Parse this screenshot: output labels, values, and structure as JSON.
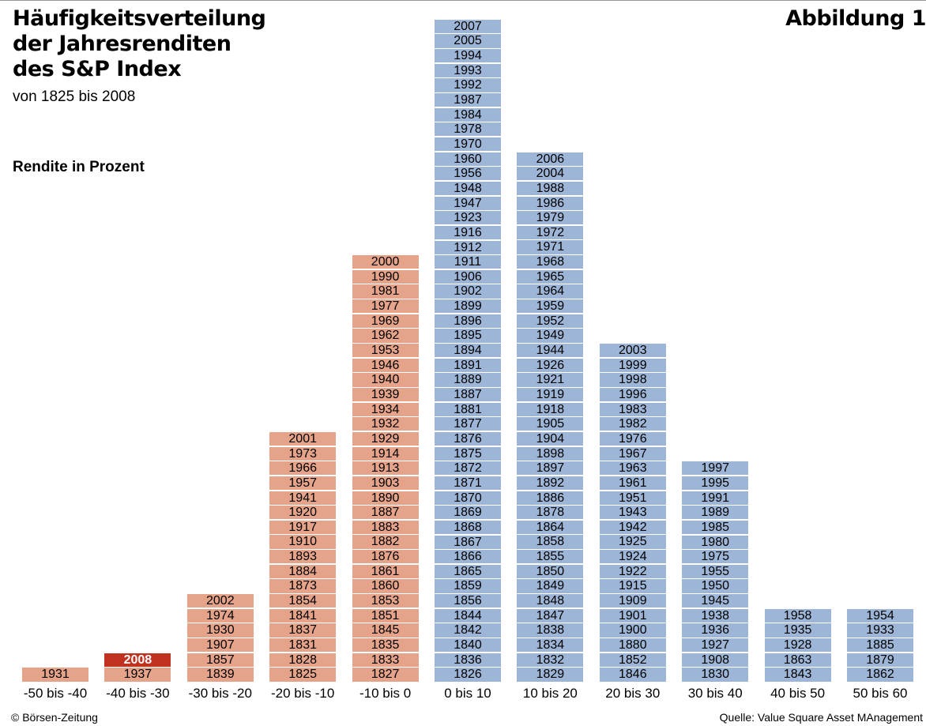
{
  "header": {
    "title": "Häufigkeitsverteilung\nder Jahresrenditen\ndes S&P Index",
    "subtitle": "von 1825 bis 2008",
    "figure_label": "Abbildung 1"
  },
  "footer": {
    "credit": "© Börsen-Zeitung",
    "source": "Quelle: Value Square Asset MAnagement"
  },
  "colors": {
    "negative": "#e5a48a",
    "positive": "#9db5d6",
    "highlight": "#c0311f",
    "highlight_text": "#ffffff"
  },
  "chart_data": {
    "type": "bar",
    "title": "Häufigkeitsverteilung der Jahresrenditen des S&P Index",
    "subtitle": "von 1825 bis 2008",
    "xlabel": "Rendite in Prozent",
    "highlight_year": "2008",
    "categories": [
      "-50 bis -40",
      "-40 bis -30",
      "-30 bis -20",
      "-20 bis -10",
      "-10 bis 0",
      "0 bis 10",
      "10 bis 20",
      "20 bis 30",
      "30 bis 40",
      "40 bis 50",
      "50 bis 60"
    ],
    "values": [
      1,
      2,
      6,
      17,
      29,
      45,
      36,
      23,
      15,
      5,
      5
    ],
    "years": [
      [
        "1931"
      ],
      [
        "2008",
        "1937"
      ],
      [
        "2002",
        "1974",
        "1930",
        "1907",
        "1857",
        "1839"
      ],
      [
        "2001",
        "1973",
        "1966",
        "1957",
        "1941",
        "1920",
        "1917",
        "1910",
        "1893",
        "1884",
        "1873",
        "1854",
        "1841",
        "1837",
        "1831",
        "1828",
        "1825"
      ],
      [
        "2000",
        "1990",
        "1981",
        "1977",
        "1969",
        "1962",
        "1953",
        "1946",
        "1940",
        "1939",
        "1934",
        "1932",
        "1929",
        "1914",
        "1913",
        "1903",
        "1890",
        "1887",
        "1883",
        "1882",
        "1876",
        "1861",
        "1860",
        "1853",
        "1851",
        "1845",
        "1835",
        "1833",
        "1827"
      ],
      [
        "2007",
        "2005",
        "1994",
        "1993",
        "1992",
        "1987",
        "1984",
        "1978",
        "1970",
        "1960",
        "1956",
        "1948",
        "1947",
        "1923",
        "1916",
        "1912",
        "1911",
        "1906",
        "1902",
        "1899",
        "1896",
        "1895",
        "1894",
        "1891",
        "1889",
        "1887",
        "1881",
        "1877",
        "1876",
        "1875",
        "1872",
        "1871",
        "1870",
        "1869",
        "1868",
        "1867",
        "1866",
        "1865",
        "1859",
        "1856",
        "1844",
        "1842",
        "1840",
        "1836",
        "1826"
      ],
      [
        "2006",
        "2004",
        "1988",
        "1986",
        "1979",
        "1972",
        "1971",
        "1968",
        "1965",
        "1964",
        "1959",
        "1952",
        "1949",
        "1944",
        "1926",
        "1921",
        "1919",
        "1918",
        "1905",
        "1904",
        "1898",
        "1897",
        "1892",
        "1886",
        "1878",
        "1864",
        "1858",
        "1855",
        "1850",
        "1849",
        "1848",
        "1847",
        "1838",
        "1834",
        "1832",
        "1829"
      ],
      [
        "2003",
        "1999",
        "1998",
        "1996",
        "1983",
        "1982",
        "1976",
        "1967",
        "1963",
        "1961",
        "1951",
        "1943",
        "1942",
        "1925",
        "1924",
        "1922",
        "1915",
        "1909",
        "1901",
        "1900",
        "1880",
        "1852",
        "1846"
      ],
      [
        "1997",
        "1995",
        "1991",
        "1989",
        "1985",
        "1980",
        "1975",
        "1955",
        "1950",
        "1945",
        "1938",
        "1936",
        "1927",
        "1908",
        "1830"
      ],
      [
        "1958",
        "1935",
        "1928",
        "1863",
        "1843"
      ],
      [
        "1954",
        "1933",
        "1885",
        "1879",
        "1862"
      ]
    ],
    "ylim": [
      0,
      45
    ]
  }
}
